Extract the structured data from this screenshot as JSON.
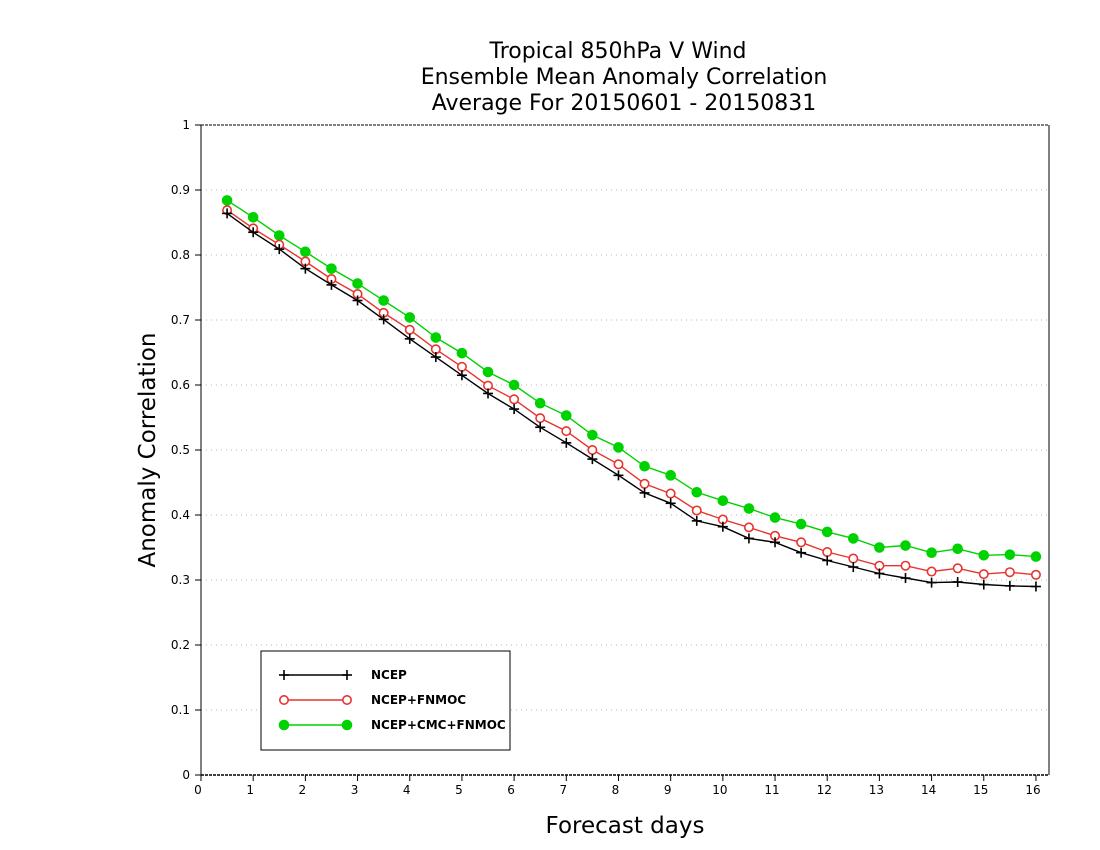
{
  "chart_data": {
    "type": "line",
    "title": [
      "Tropical 850hPa V Wind",
      "Ensemble Mean Anomaly Correlation",
      "Average For 20150601 - 20150831"
    ],
    "xlabel": "Forecast days",
    "ylabel": "Anomaly Correlation",
    "xlim": [
      0,
      16.25
    ],
    "ylim": [
      0,
      1
    ],
    "xticks": [
      "0",
      "1",
      "2",
      "3",
      "4",
      "5",
      "6",
      "7",
      "8",
      "9",
      "10",
      "11",
      "12",
      "13",
      "14",
      "15",
      "16"
    ],
    "yticks": [
      "0",
      "0.1",
      "0.2",
      "0.3",
      "0.4",
      "0.5",
      "0.6",
      "0.7",
      "0.8",
      "0.9",
      "1"
    ],
    "grid": true,
    "legend_position": "bottom-left",
    "x": [
      0.5,
      1,
      1.5,
      2,
      2.5,
      3,
      3.5,
      4,
      4.5,
      5,
      5.5,
      6,
      6.5,
      7,
      7.5,
      8,
      8.5,
      9,
      9.5,
      10,
      10.5,
      11,
      11.5,
      12,
      12.5,
      13,
      13.5,
      14,
      14.5,
      15,
      15.5,
      16
    ],
    "series": [
      {
        "name": "NCEP",
        "color": "#000000",
        "marker": "plus",
        "values": [
          0.864,
          0.835,
          0.809,
          0.779,
          0.754,
          0.73,
          0.701,
          0.671,
          0.643,
          0.615,
          0.587,
          0.563,
          0.535,
          0.511,
          0.486,
          0.461,
          0.434,
          0.418,
          0.391,
          0.382,
          0.364,
          0.358,
          0.342,
          0.33,
          0.32,
          0.31,
          0.303,
          0.296,
          0.297,
          0.293,
          0.291,
          0.29
        ]
      },
      {
        "name": "NCEP+FNMOC",
        "color": "#e8342e",
        "marker": "open-circle",
        "values": [
          0.869,
          0.841,
          0.816,
          0.79,
          0.763,
          0.74,
          0.711,
          0.685,
          0.655,
          0.628,
          0.599,
          0.578,
          0.549,
          0.529,
          0.5,
          0.478,
          0.448,
          0.433,
          0.407,
          0.393,
          0.381,
          0.368,
          0.358,
          0.343,
          0.333,
          0.322,
          0.322,
          0.313,
          0.318,
          0.309,
          0.312,
          0.308
        ]
      },
      {
        "name": "NCEP+CMC+FNMOC",
        "color": "#00d200",
        "marker": "filled-circle",
        "values": [
          0.884,
          0.858,
          0.83,
          0.805,
          0.779,
          0.756,
          0.73,
          0.704,
          0.673,
          0.649,
          0.62,
          0.6,
          0.572,
          0.553,
          0.523,
          0.504,
          0.475,
          0.461,
          0.435,
          0.422,
          0.41,
          0.396,
          0.386,
          0.374,
          0.364,
          0.35,
          0.353,
          0.342,
          0.348,
          0.338,
          0.339,
          0.336
        ]
      }
    ]
  }
}
